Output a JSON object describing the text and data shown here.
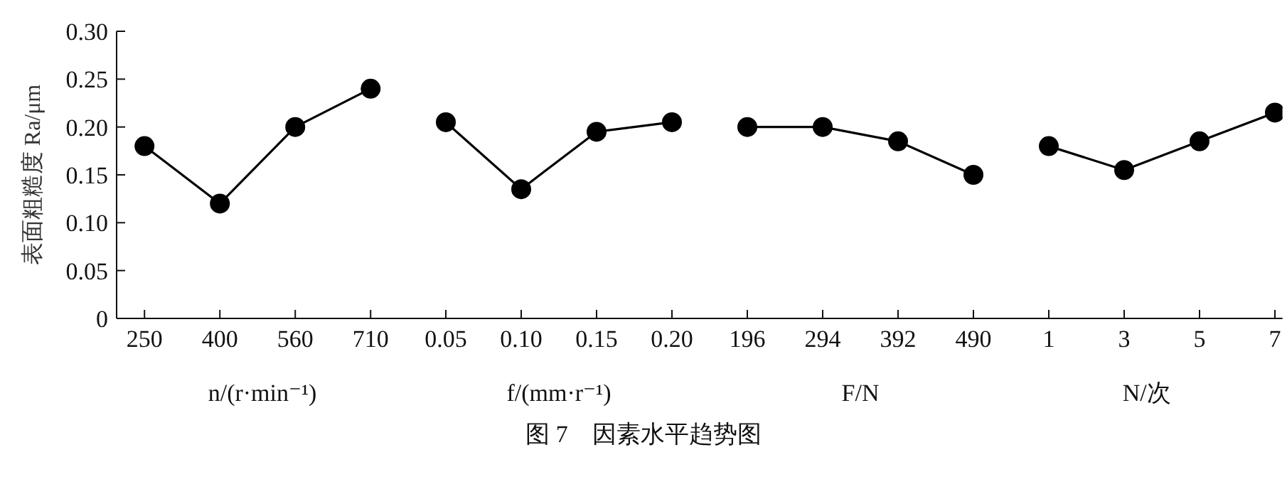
{
  "chart_data": [
    {
      "type": "line",
      "categories": [
        "250",
        "400",
        "560",
        "710"
      ],
      "values": [
        0.18,
        0.12,
        0.2,
        0.24
      ],
      "color": "#000000",
      "marker": "circle",
      "line_style": "solid",
      "xlabel": "n/(r·min⁻¹)",
      "ylabel": "表面粗糙度 Ra/μm",
      "ylim": [
        0,
        0.3
      ],
      "yticks": [
        0,
        0.05,
        {
          "value": 0.1,
          "label": "0.10"
        },
        0.15,
        {
          "value": 0.2,
          "label": "0.20"
        },
        0.25,
        {
          "value": 0.3,
          "label": "0.30"
        }
      ],
      "annotations": [
        "图 7　因素水平趋势图"
      ]
    },
    {
      "type": "line",
      "categories": [
        "0.05",
        "0.10",
        "0.15",
        "0.20"
      ],
      "values": [
        0.205,
        0.135,
        0.195,
        0.205
      ],
      "color": "#000000",
      "marker": "circle",
      "line_style": "solid",
      "xlabel": "f/(mm·r⁻¹)",
      "ylim": [
        0,
        0.3
      ],
      "tick_labels": "x"
    },
    {
      "type": "line",
      "categories": [
        "196",
        "294",
        "392",
        "490"
      ],
      "values": [
        0.2,
        0.2,
        0.185,
        0.15
      ],
      "color": "#000000",
      "marker": "circle",
      "line_style": "solid",
      "xlabel": "F/N",
      "ylim": [
        0,
        0.3
      ],
      "tick_labels": "x"
    },
    {
      "type": "line",
      "categories": [
        "1",
        "3",
        "5",
        "7"
      ],
      "values": [
        0.18,
        0.155,
        0.185,
        0.215
      ],
      "color": "#000000",
      "marker": "circle",
      "line_style": "solid",
      "xlabel": "N/次",
      "ylim": [
        0,
        0.3
      ],
      "tick_labels": "x"
    }
  ]
}
